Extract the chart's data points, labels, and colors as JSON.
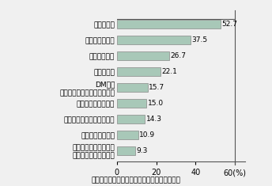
{
  "categories": [
    "スポンサーシップ広告\n（編集タイアップ等）",
    "コンテンツ連動型",
    "その他インターネット広告",
    "リッチメディア広告",
    "DM広告\n（ターゲティングメール等）",
    "検索連動型",
    "テキスト広告",
    "メールマガジン",
    "バナー広告"
  ],
  "values": [
    9.3,
    10.9,
    14.3,
    15.0,
    15.7,
    22.1,
    26.7,
    37.5,
    52.7
  ],
  "bar_color": "#a8c8b8",
  "bar_edge_color": "#888888",
  "xlim": [
    0,
    65
  ],
  "xticks": [
    0,
    20,
    40,
    60
  ],
  "xticklabels": [
    "0",
    "20",
    "40",
    "60(%)"
  ],
  "footnote": "（出典）総務省「平成９年通信利用動向調査」",
  "bg_color": "#f0f0f0",
  "value_fontsize": 6.5,
  "label_fontsize": 6.5,
  "footnote_fontsize": 6.5,
  "tick_fontsize": 7.0,
  "bar_height": 0.55
}
